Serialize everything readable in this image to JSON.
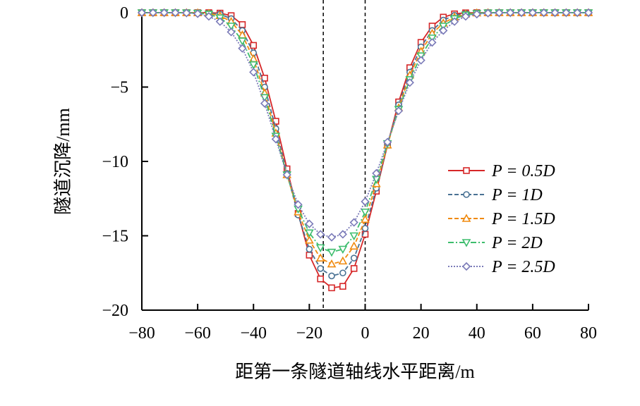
{
  "chart_data": {
    "type": "line",
    "title": "",
    "xlabel": "距第一条隧道轴线水平距离/m",
    "ylabel": "隧道沉降/mm",
    "xlim": [
      -80,
      80
    ],
    "ylim": [
      -20,
      0
    ],
    "xticks": [
      -80,
      -60,
      -40,
      -20,
      0,
      20,
      40,
      60,
      80
    ],
    "xtick_labels": [
      "−80",
      "−60",
      "−40",
      "−20",
      "0",
      "20",
      "40",
      "60",
      "80"
    ],
    "yticks": [
      0,
      -5,
      -10,
      -15,
      -20
    ],
    "ytick_labels": [
      "0",
      "−5",
      "−10",
      "−15",
      "−20"
    ],
    "reference_lines_x": [
      -15,
      0
    ],
    "legend_position": "center-right",
    "x": [
      -80,
      -76,
      -72,
      -68,
      -64,
      -60,
      -56,
      -52,
      -48,
      -44,
      -40,
      -36,
      -32,
      -28,
      -24,
      -20,
      -16,
      -12,
      -8,
      -4,
      0,
      4,
      8,
      12,
      16,
      20,
      24,
      28,
      32,
      36,
      40,
      44,
      48,
      52,
      56,
      60,
      64,
      68,
      72,
      76,
      80
    ],
    "series": [
      {
        "name": "P = 0.5D",
        "color": "#d62728",
        "marker": "square",
        "dash": "solid",
        "values": [
          0,
          0,
          0,
          0,
          0,
          0,
          0,
          -0.03,
          -0.2,
          -0.8,
          -2.2,
          -4.4,
          -7.3,
          -10.5,
          -13.5,
          -16.3,
          -17.9,
          -18.5,
          -18.4,
          -17.2,
          -14.9,
          -12.0,
          -8.9,
          -6.0,
          -3.7,
          -2.0,
          -0.9,
          -0.3,
          -0.08,
          -0.01,
          0,
          0,
          0,
          0,
          0,
          0,
          0,
          0,
          0,
          0,
          0
        ]
      },
      {
        "name": "P = 1D",
        "color": "#4a7294",
        "marker": "circle",
        "dash": "dashed",
        "values": [
          0,
          0,
          0,
          0,
          0,
          0,
          -0.02,
          -0.1,
          -0.4,
          -1.2,
          -2.7,
          -5.0,
          -7.8,
          -10.8,
          -13.6,
          -15.9,
          -17.2,
          -17.7,
          -17.5,
          -16.5,
          -14.5,
          -11.8,
          -8.9,
          -6.2,
          -4.0,
          -2.3,
          -1.2,
          -0.5,
          -0.18,
          -0.05,
          -0.01,
          0,
          0,
          0,
          0,
          0,
          0,
          0,
          0,
          0,
          0
        ]
      },
      {
        "name": "P = 1.5D",
        "color": "#f08a0f",
        "marker": "triangle-up",
        "dash": "dashed",
        "values": [
          0,
          0,
          0,
          0,
          0,
          -0.01,
          -0.05,
          -0.2,
          -0.6,
          -1.5,
          -3.1,
          -5.4,
          -8.1,
          -10.9,
          -13.4,
          -15.3,
          -16.5,
          -16.9,
          -16.7,
          -15.7,
          -13.9,
          -11.5,
          -8.9,
          -6.4,
          -4.2,
          -2.6,
          -1.4,
          -0.7,
          -0.3,
          -0.1,
          -0.02,
          0,
          0,
          0,
          0,
          0,
          0,
          0,
          0,
          0,
          0
        ]
      },
      {
        "name": "P = 2D",
        "color": "#3dbd6d",
        "marker": "triangle-down",
        "dash": "dashdot",
        "values": [
          0,
          0,
          0,
          0,
          -0.01,
          -0.03,
          -0.1,
          -0.35,
          -0.9,
          -1.9,
          -3.5,
          -5.7,
          -8.3,
          -10.9,
          -13.2,
          -14.8,
          -15.8,
          -16.1,
          -15.9,
          -15.0,
          -13.4,
          -11.2,
          -8.8,
          -6.5,
          -4.5,
          -2.9,
          -1.7,
          -0.9,
          -0.4,
          -0.15,
          -0.05,
          -0.01,
          0,
          0,
          0,
          0,
          0,
          0,
          0,
          0,
          0
        ]
      },
      {
        "name": "P = 2.5D",
        "color": "#7a7ab8",
        "marker": "diamond",
        "dash": "dotted",
        "values": [
          0,
          0,
          0,
          0,
          -0.02,
          -0.07,
          -0.25,
          -0.6,
          -1.3,
          -2.4,
          -4.0,
          -6.1,
          -8.5,
          -10.9,
          -12.9,
          -14.2,
          -14.9,
          -15.1,
          -14.9,
          -14.1,
          -12.7,
          -10.8,
          -8.7,
          -6.6,
          -4.7,
          -3.2,
          -2.0,
          -1.2,
          -0.6,
          -0.25,
          -0.1,
          -0.03,
          -0.01,
          0,
          0,
          0,
          0,
          0,
          0,
          0,
          0
        ]
      }
    ]
  }
}
